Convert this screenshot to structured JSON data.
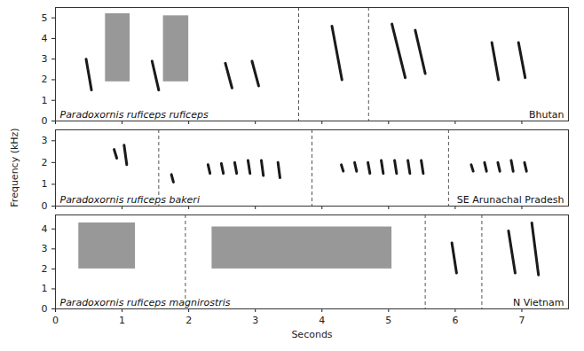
{
  "chart_data": [
    {
      "type": "sonogram",
      "title": "Paradoxornis ruficeps ruficeps",
      "subtitle": "Bhutan",
      "xlim": [
        0,
        7.7
      ],
      "xticks": [
        0,
        1,
        2,
        3,
        4,
        5,
        6,
        7
      ],
      "ylim": [
        0,
        5.5
      ],
      "yticks": [
        0,
        1,
        2,
        3,
        4,
        5
      ],
      "tick_labels": "y",
      "color": "#1a1a1a",
      "dividers": [
        3.65,
        4.7
      ],
      "notes": [
        {
          "x1": 0.46,
          "x2": 0.54,
          "y1": 3.0,
          "y2": 1.5
        },
        {
          "x1": 1.45,
          "x2": 1.55,
          "y1": 2.9,
          "y2": 1.5
        },
        {
          "x1": 2.55,
          "x2": 2.65,
          "y1": 2.8,
          "y2": 1.6
        },
        {
          "x1": 2.95,
          "x2": 3.05,
          "y1": 2.9,
          "y2": 1.7
        },
        {
          "x1": 4.15,
          "x2": 4.3,
          "y1": 4.6,
          "y2": 2.0
        },
        {
          "x1": 5.05,
          "x2": 5.25,
          "y1": 4.7,
          "y2": 2.1
        },
        {
          "x1": 5.4,
          "x2": 5.55,
          "y1": 4.4,
          "y2": 2.3
        },
        {
          "x1": 6.55,
          "x2": 6.65,
          "y1": 3.8,
          "y2": 2.0
        },
        {
          "x1": 6.95,
          "x2": 7.05,
          "y1": 3.8,
          "y2": 2.1
        }
      ],
      "bands": [
        {
          "x1": 0.75,
          "x2": 1.12,
          "y1": 1.9,
          "y2": 5.2
        },
        {
          "x1": 1.62,
          "x2": 2.0,
          "y1": 1.9,
          "y2": 5.1
        }
      ]
    },
    {
      "type": "sonogram",
      "title": "Paradoxornis ruficeps bakeri",
      "subtitle": "SE Arunachal Pradesh",
      "ylabel": "Frequency (kHz)",
      "xlim": [
        0,
        7.7
      ],
      "xticks": [
        0,
        1,
        2,
        3,
        4,
        5,
        6,
        7
      ],
      "ylim": [
        0,
        3.5
      ],
      "yticks": [
        0,
        1,
        2,
        3
      ],
      "tick_labels": "y",
      "color": "#1a1a1a",
      "dividers": [
        1.55,
        3.85,
        5.9
      ],
      "notes": [
        {
          "x1": 0.88,
          "x2": 0.92,
          "y1": 2.6,
          "y2": 2.2
        },
        {
          "x1": 1.03,
          "x2": 1.07,
          "y1": 2.8,
          "y2": 1.9
        },
        {
          "x1": 1.74,
          "x2": 1.77,
          "y1": 1.45,
          "y2": 1.1
        },
        {
          "x1": 2.29,
          "x2": 2.32,
          "y1": 1.9,
          "y2": 1.5
        },
        {
          "x1": 2.49,
          "x2": 2.52,
          "y1": 1.95,
          "y2": 1.5
        },
        {
          "x1": 2.69,
          "x2": 2.72,
          "y1": 2.0,
          "y2": 1.5
        },
        {
          "x1": 2.89,
          "x2": 2.92,
          "y1": 2.1,
          "y2": 1.5
        },
        {
          "x1": 3.09,
          "x2": 3.12,
          "y1": 2.1,
          "y2": 1.4
        },
        {
          "x1": 3.34,
          "x2": 3.37,
          "y1": 2.0,
          "y2": 1.3
        },
        {
          "x1": 4.29,
          "x2": 4.32,
          "y1": 1.9,
          "y2": 1.6
        },
        {
          "x1": 4.49,
          "x2": 4.52,
          "y1": 2.0,
          "y2": 1.6
        },
        {
          "x1": 4.69,
          "x2": 4.72,
          "y1": 2.0,
          "y2": 1.5
        },
        {
          "x1": 4.89,
          "x2": 4.92,
          "y1": 2.1,
          "y2": 1.5
        },
        {
          "x1": 5.09,
          "x2": 5.12,
          "y1": 2.1,
          "y2": 1.5
        },
        {
          "x1": 5.29,
          "x2": 5.32,
          "y1": 2.1,
          "y2": 1.5
        },
        {
          "x1": 5.49,
          "x2": 5.52,
          "y1": 2.1,
          "y2": 1.5
        },
        {
          "x1": 6.24,
          "x2": 6.27,
          "y1": 1.9,
          "y2": 1.6
        },
        {
          "x1": 6.44,
          "x2": 6.47,
          "y1": 2.0,
          "y2": 1.6
        },
        {
          "x1": 6.64,
          "x2": 6.67,
          "y1": 2.0,
          "y2": 1.6
        },
        {
          "x1": 6.84,
          "x2": 6.87,
          "y1": 2.1,
          "y2": 1.6
        },
        {
          "x1": 7.04,
          "x2": 7.07,
          "y1": 2.0,
          "y2": 1.6
        }
      ]
    },
    {
      "type": "sonogram",
      "title": "Paradoxornis ruficeps magnirostris",
      "subtitle": "N Vietnam",
      "xlabel": "Seconds",
      "xlim": [
        0,
        7.7
      ],
      "xticks": [
        0,
        1,
        2,
        3,
        4,
        5,
        6,
        7
      ],
      "ylim": [
        0,
        4.7
      ],
      "yticks": [
        0,
        1,
        2,
        3,
        4
      ],
      "color": "#1a1a1a",
      "dividers": [
        1.95,
        5.55,
        6.4
      ],
      "notes": [
        {
          "x1": 5.95,
          "x2": 6.02,
          "y1": 3.3,
          "y2": 1.8
        },
        {
          "x1": 6.8,
          "x2": 6.9,
          "y1": 3.9,
          "y2": 1.8
        },
        {
          "x1": 7.15,
          "x2": 7.25,
          "y1": 4.3,
          "y2": 1.7
        }
      ],
      "bands": [
        {
          "x1": 0.35,
          "x2": 1.2,
          "y1": 2.0,
          "y2": 4.3
        },
        {
          "x1": 2.35,
          "x2": 5.05,
          "y1": 2.0,
          "y2": 4.1
        }
      ]
    }
  ]
}
